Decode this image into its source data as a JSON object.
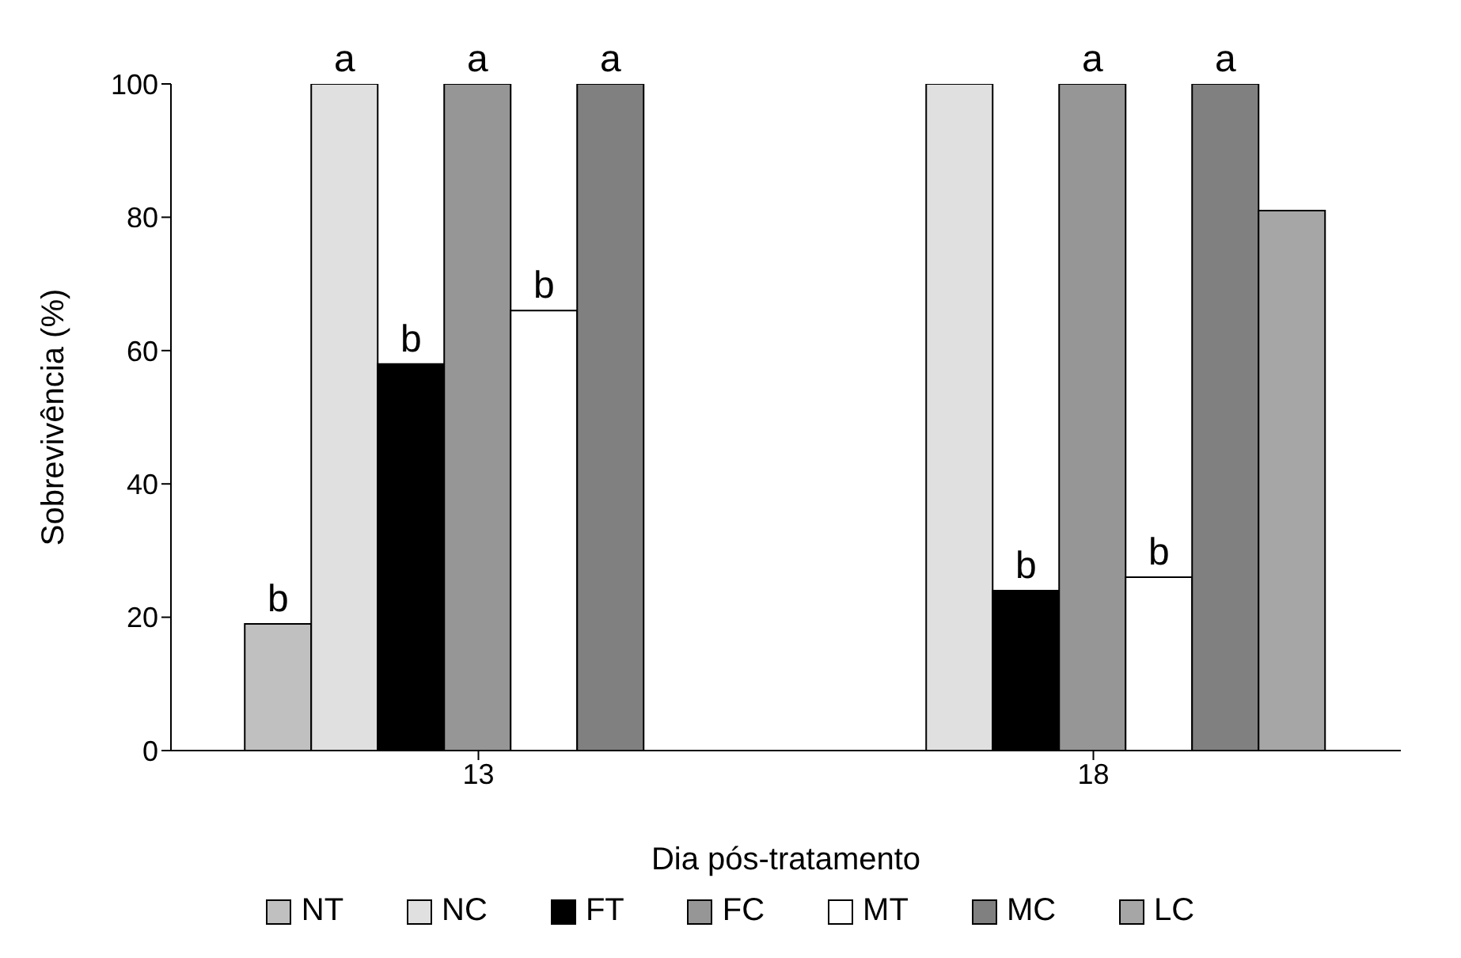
{
  "chart_data": {
    "type": "bar",
    "xlabel": "Dia pós-tratamento",
    "ylabel": "Sobrevivência (%)",
    "categories": [
      "13",
      "18"
    ],
    "series": [
      {
        "name": "NT",
        "color": "#c0c0c0",
        "values": [
          19,
          null
        ],
        "value_labels": [
          "b",
          null
        ]
      },
      {
        "name": "NC",
        "color": "#e0e0e0",
        "values": [
          100,
          100
        ],
        "value_labels": [
          "a",
          null
        ]
      },
      {
        "name": "FT",
        "color": "#000000",
        "values": [
          58,
          24
        ],
        "value_labels": [
          "b",
          "b"
        ]
      },
      {
        "name": "FC",
        "color": "#969696",
        "values": [
          100,
          100
        ],
        "value_labels": [
          "a",
          "a"
        ]
      },
      {
        "name": "MT",
        "color": "#ffffff",
        "values": [
          66,
          26
        ],
        "value_labels": [
          "b",
          "b"
        ]
      },
      {
        "name": "MC",
        "color": "#808080",
        "values": [
          100,
          100
        ],
        "value_labels": [
          "a",
          "a"
        ]
      },
      {
        "name": "LC",
        "color": "#a6a6a6",
        "values": [
          null,
          81
        ],
        "value_labels": [
          null,
          null
        ]
      }
    ],
    "ylim": [
      0,
      100
    ],
    "yticks": [
      0,
      20,
      40,
      60,
      80,
      100
    ],
    "grid": false,
    "legend": "bottom"
  }
}
